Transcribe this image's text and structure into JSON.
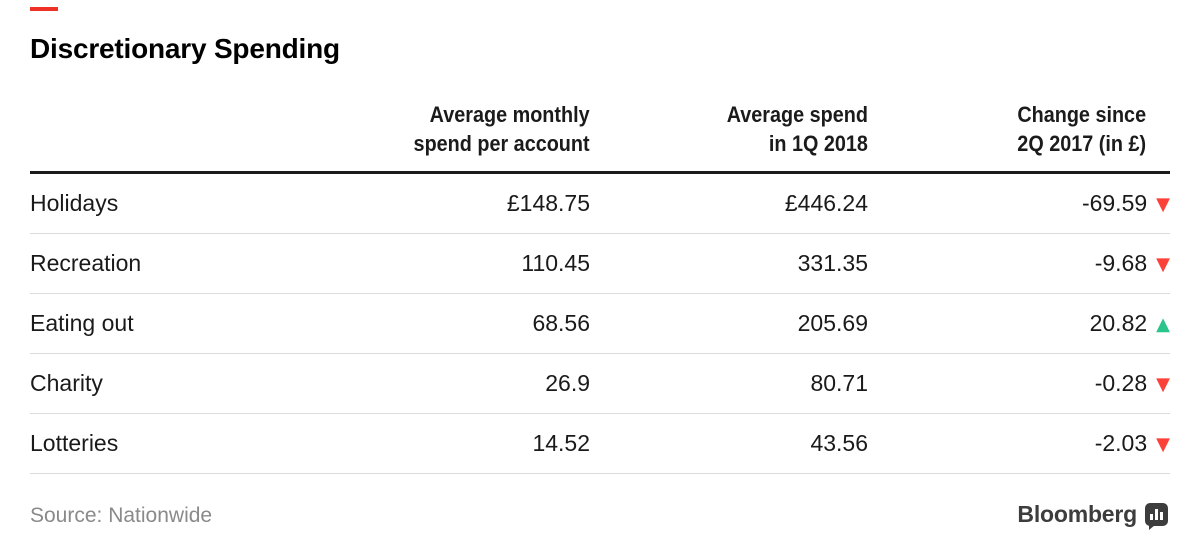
{
  "title": "Discretionary Spending",
  "table": {
    "headers": [
      {
        "line1": "Average monthly",
        "line2": "spend per account"
      },
      {
        "line1": "Average spend",
        "line2": "in 1Q 2018"
      },
      {
        "line1": "Change since",
        "line2": "2Q 2017 (in £)"
      }
    ],
    "rows": [
      {
        "label": "Holidays",
        "avg_monthly": "£148.75",
        "avg_1q2018": "£446.24",
        "change": "-69.59",
        "direction": "down"
      },
      {
        "label": "Recreation",
        "avg_monthly": "110.45",
        "avg_1q2018": "331.35",
        "change": "-9.68",
        "direction": "down"
      },
      {
        "label": "Eating out",
        "avg_monthly": "68.56",
        "avg_1q2018": "205.69",
        "change": "20.82",
        "direction": "up"
      },
      {
        "label": "Charity",
        "avg_monthly": "26.9",
        "avg_1q2018": "80.71",
        "change": "-0.28",
        "direction": "down"
      },
      {
        "label": "Lotteries",
        "avg_monthly": "14.52",
        "avg_1q2018": "43.56",
        "change": "-2.03",
        "direction": "down"
      }
    ]
  },
  "footer": {
    "source": "Source: Nationwide",
    "brand": "Bloomberg"
  },
  "icons": {
    "up": "▲",
    "down": "▼",
    "brand_icon": "bar-chart-bubble-icon"
  },
  "colors": {
    "up": "#2bc48a",
    "down": "#fc4138",
    "accent": "#ee3124",
    "header_rule": "#1b1b1b",
    "row_separator": "#dcdcdc",
    "source_text": "#8a8a8a",
    "brand_text": "#3d3d3d"
  },
  "chart_data": {
    "type": "table",
    "title": "Discretionary Spending",
    "columns": [
      "Category",
      "Average monthly spend per account",
      "Average spend in 1Q 2018",
      "Change since 2Q 2017 (in £)"
    ],
    "rows": [
      [
        "Holidays",
        148.75,
        446.24,
        -69.59
      ],
      [
        "Recreation",
        110.45,
        331.35,
        -9.68
      ],
      [
        "Eating out",
        68.56,
        205.69,
        20.82
      ],
      [
        "Charity",
        26.9,
        80.71,
        -0.28
      ],
      [
        "Lotteries",
        14.52,
        43.56,
        -2.03
      ]
    ],
    "currency": "GBP",
    "direction_markers": {
      "negative": "red down triangle",
      "positive": "green up triangle"
    },
    "source": "Nationwide",
    "brand": "Bloomberg"
  }
}
